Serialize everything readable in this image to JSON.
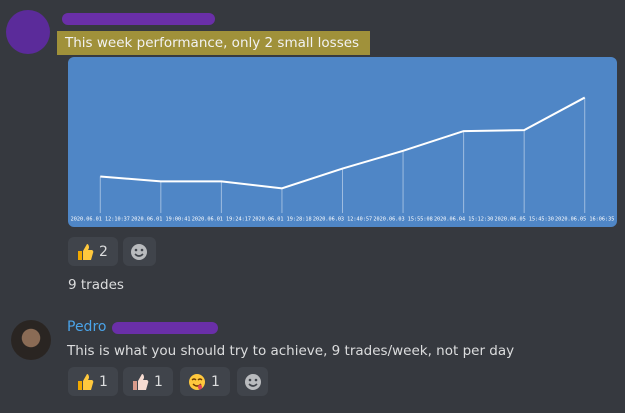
{
  "message_1": {
    "text": "This week performance, only 2 small losses",
    "chart": {
      "type": "line",
      "color": "#ffffff",
      "background": "#4f86c6",
      "categories": [
        "2020.06.01 12:10:37",
        "2020.06.01 19:00:41",
        "2020.06.01 19:24:17",
        "2020.06.01 19:28:18",
        "2020.06.03 12:40:57",
        "2020.06.03 15:55:08",
        "2020.06.04 15:12:30",
        "2020.06.05 15:45:30",
        "2020.06.05 16:06:35"
      ],
      "values": [
        37,
        32,
        32,
        25,
        45,
        63,
        83,
        84,
        117
      ],
      "ylim": [
        0,
        150
      ]
    },
    "reactions": [
      2
    ],
    "followup": "9 trades"
  },
  "message_2": {
    "author": "Pedro",
    "text": "This is what you should try to achieve, 9 trades/week, not per day",
    "reactions": [
      1,
      1,
      1
    ]
  }
}
